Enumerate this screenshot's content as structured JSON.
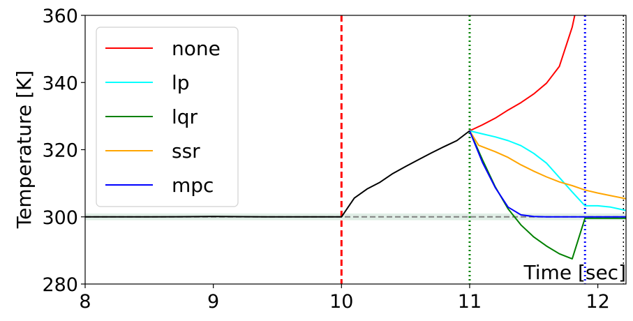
{
  "chart_data": {
    "type": "line",
    "xlabel": "Time [sec]",
    "ylabel": "Temperature [K]",
    "xlim": [
      8,
      12.22
    ],
    "ylim": [
      280,
      360
    ],
    "xticks": [
      "8",
      "9",
      "10",
      "11",
      "12"
    ],
    "yticks": [
      "280",
      "300",
      "320",
      "340",
      "360"
    ],
    "legend_position": "top-left",
    "grid": false,
    "setpoint": {
      "y": 300,
      "band": [
        299,
        301
      ],
      "color": "#808080",
      "band_color": "#2e8b57"
    },
    "vlines": [
      {
        "x": 10.0,
        "color": "#ff0000",
        "style": "dashed"
      },
      {
        "x": 11.0,
        "color": "#008000",
        "style": "dotted"
      },
      {
        "x": 11.9,
        "color": "#0000ff",
        "style": "dotted"
      },
      {
        "x": 12.2,
        "color": "#000000",
        "style": "dotted"
      }
    ],
    "baseline": {
      "color": "#000000",
      "x": [
        8.0,
        8.5,
        9.0,
        9.5,
        10.0,
        10.1,
        10.2,
        10.3,
        10.4,
        10.5,
        10.6,
        10.7,
        10.8,
        10.9,
        11.0
      ],
      "y": [
        300.0,
        300.0,
        300.1,
        300.0,
        300.0,
        305.6,
        308.3,
        310.3,
        312.9,
        315.0,
        317.0,
        319.0,
        320.9,
        322.7,
        325.6
      ]
    },
    "series": [
      {
        "name": "none",
        "color": "#ff0000",
        "x": [
          11.0,
          11.1,
          11.2,
          11.3,
          11.4,
          11.5,
          11.6,
          11.7,
          11.8,
          11.82
        ],
        "y": [
          325.6,
          327.4,
          329.4,
          331.8,
          334.0,
          336.6,
          339.8,
          344.8,
          356.5,
          360.0
        ]
      },
      {
        "name": "lp",
        "color": "#00ffff",
        "x": [
          11.0,
          11.1,
          11.2,
          11.3,
          11.4,
          11.5,
          11.6,
          11.7,
          11.8,
          11.9,
          12.0,
          12.1,
          12.22
        ],
        "y": [
          325.6,
          324.7,
          323.8,
          322.7,
          321.2,
          318.9,
          316.0,
          311.7,
          307.4,
          303.3,
          303.3,
          302.9,
          301.9
        ]
      },
      {
        "name": "lqr",
        "color": "#008000",
        "x": [
          11.0,
          11.1,
          11.2,
          11.3,
          11.4,
          11.5,
          11.6,
          11.7,
          11.8,
          11.9,
          12.0,
          12.1,
          12.22
        ],
        "y": [
          325.6,
          317.0,
          308.9,
          302.4,
          297.6,
          294.0,
          291.3,
          289.0,
          287.5,
          299.6,
          299.6,
          299.6,
          299.6
        ]
      },
      {
        "name": "ssr",
        "color": "#ffa500",
        "x": [
          11.0,
          11.07,
          11.2,
          11.3,
          11.4,
          11.5,
          11.6,
          11.7,
          11.8,
          11.9,
          12.0,
          12.1,
          12.22
        ],
        "y": [
          325.6,
          321.3,
          319.4,
          317.7,
          315.5,
          313.6,
          311.9,
          310.4,
          309.3,
          308.0,
          307.1,
          306.3,
          305.4
        ]
      },
      {
        "name": "mpc",
        "color": "#0000ff",
        "x": [
          11.0,
          11.1,
          11.2,
          11.3,
          11.4,
          11.5,
          11.6,
          11.7,
          11.8,
          11.9,
          12.0,
          12.1,
          12.22
        ],
        "y": [
          325.6,
          316.2,
          308.7,
          302.9,
          300.6,
          300.1,
          300.0,
          300.0,
          300.0,
          300.0,
          300.0,
          300.0,
          300.0
        ]
      }
    ]
  }
}
